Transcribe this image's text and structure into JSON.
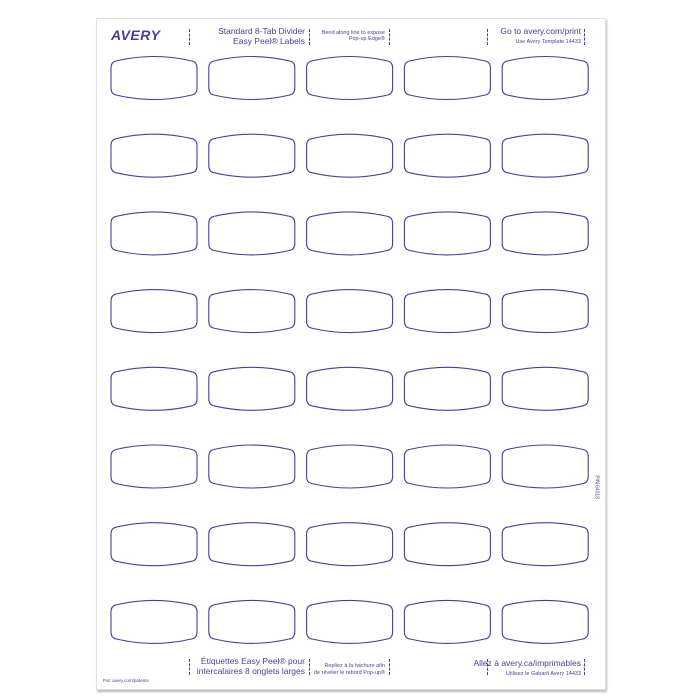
{
  "brand": "AVERY",
  "header": {
    "title_line1": "Standard 8-Tab Divider",
    "title_line2": "Easy Peel® Labels",
    "bend_line1": "Bend along line to expose",
    "bend_line2": "Pop-up Edge®",
    "goto": "Go to avery.com/print",
    "template": "Use Avery Template 14433"
  },
  "footer": {
    "title_line1": "Étiquettes Easy Peel® pour",
    "title_line2": "intercalaires 8 onglets larges",
    "bend_line1": "Repliez à la hachure afin",
    "bend_line2": "de révéler le rebord Pop-up®",
    "goto": "Allez à avery.ca/imprimables",
    "template": "Utilisez le Gabarit Avery 14433",
    "patents": "Pat: avery.com/patents"
  },
  "part_number": "P/N 64018",
  "grid": {
    "rows": 8,
    "columns": 5
  },
  "colors": {
    "ink": "#4a3f99"
  }
}
